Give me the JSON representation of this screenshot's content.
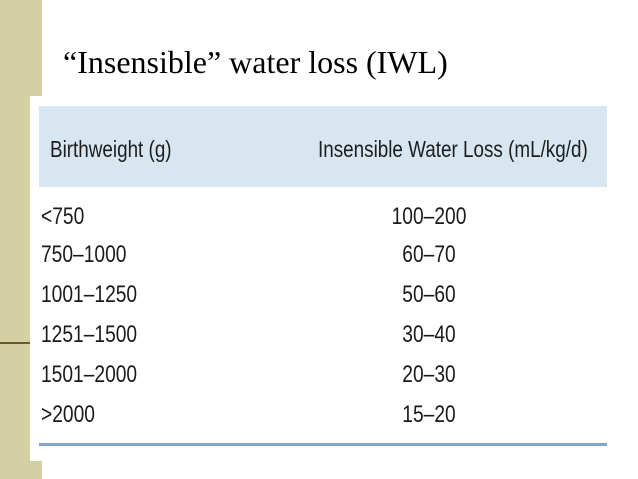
{
  "slide": {
    "title": "“Insensible” water loss (IWL)"
  },
  "table": {
    "headers": [
      "Birthweight (g)",
      "Insensible Water Loss (mL/kg/d)"
    ],
    "rows": [
      [
        "<750",
        "100–200"
      ],
      [
        "750–1000",
        "60–70"
      ],
      [
        "1001–1250",
        "50–60"
      ],
      [
        "1251–1500",
        "30–40"
      ],
      [
        "1501–2000",
        "20–30"
      ],
      [
        ">2000",
        "15–20"
      ]
    ],
    "colors": {
      "header_background": "#d7e6f1",
      "bottom_rule": "#7fa6c8",
      "side_bar": "#d4d0a3"
    }
  }
}
